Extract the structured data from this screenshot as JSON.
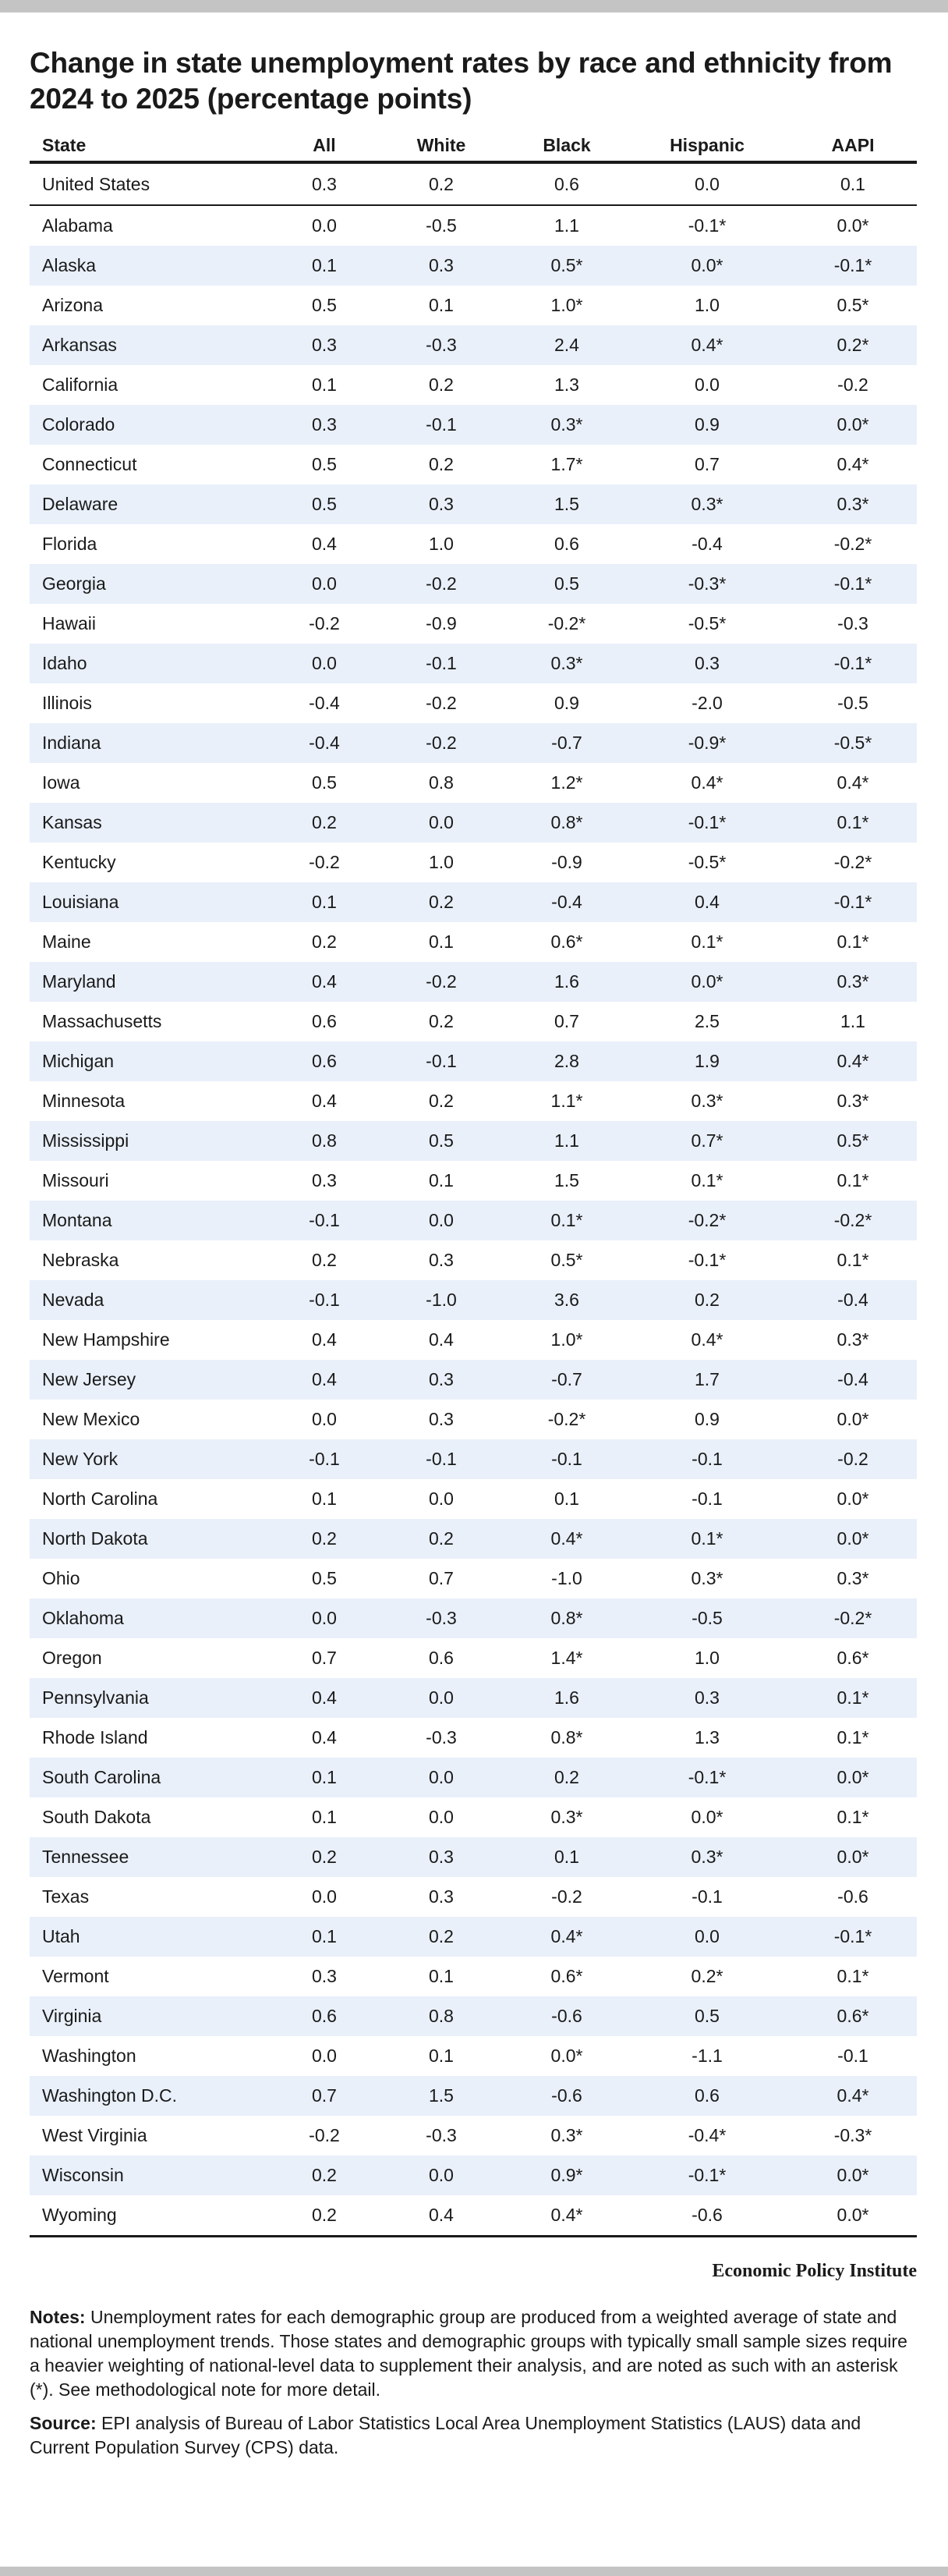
{
  "title": "Change in state unemployment rates by race and ethnicity from 2024 to 2025 (percentage points)",
  "columns": [
    "State",
    "All",
    "White",
    "Black",
    "Hispanic",
    "AAPI"
  ],
  "us_row": [
    "United States",
    "0.3",
    "0.2",
    "0.6",
    "0.0",
    "0.1"
  ],
  "rows": [
    [
      "Alabama",
      "0.0",
      "-0.5",
      "1.1",
      "-0.1*",
      "0.0*"
    ],
    [
      "Alaska",
      "0.1",
      "0.3",
      "0.5*",
      "0.0*",
      "-0.1*"
    ],
    [
      "Arizona",
      "0.5",
      "0.1",
      "1.0*",
      "1.0",
      "0.5*"
    ],
    [
      "Arkansas",
      "0.3",
      "-0.3",
      "2.4",
      "0.4*",
      "0.2*"
    ],
    [
      "California",
      "0.1",
      "0.2",
      "1.3",
      "0.0",
      "-0.2"
    ],
    [
      "Colorado",
      "0.3",
      "-0.1",
      "0.3*",
      "0.9",
      "0.0*"
    ],
    [
      "Connecticut",
      "0.5",
      "0.2",
      "1.7*",
      "0.7",
      "0.4*"
    ],
    [
      "Delaware",
      "0.5",
      "0.3",
      "1.5",
      "0.3*",
      "0.3*"
    ],
    [
      "Florida",
      "0.4",
      "1.0",
      "0.6",
      "-0.4",
      "-0.2*"
    ],
    [
      "Georgia",
      "0.0",
      "-0.2",
      "0.5",
      "-0.3*",
      "-0.1*"
    ],
    [
      "Hawaii",
      "-0.2",
      "-0.9",
      "-0.2*",
      "-0.5*",
      "-0.3"
    ],
    [
      "Idaho",
      "0.0",
      "-0.1",
      "0.3*",
      "0.3",
      "-0.1*"
    ],
    [
      "Illinois",
      "-0.4",
      "-0.2",
      "0.9",
      "-2.0",
      "-0.5"
    ],
    [
      "Indiana",
      "-0.4",
      "-0.2",
      "-0.7",
      "-0.9*",
      "-0.5*"
    ],
    [
      "Iowa",
      "0.5",
      "0.8",
      "1.2*",
      "0.4*",
      "0.4*"
    ],
    [
      "Kansas",
      "0.2",
      "0.0",
      "0.8*",
      "-0.1*",
      "0.1*"
    ],
    [
      "Kentucky",
      "-0.2",
      "1.0",
      "-0.9",
      "-0.5*",
      "-0.2*"
    ],
    [
      "Louisiana",
      "0.1",
      "0.2",
      "-0.4",
      "0.4",
      "-0.1*"
    ],
    [
      "Maine",
      "0.2",
      "0.1",
      "0.6*",
      "0.1*",
      "0.1*"
    ],
    [
      "Maryland",
      "0.4",
      "-0.2",
      "1.6",
      "0.0*",
      "0.3*"
    ],
    [
      "Massachusetts",
      "0.6",
      "0.2",
      "0.7",
      "2.5",
      "1.1"
    ],
    [
      "Michigan",
      "0.6",
      "-0.1",
      "2.8",
      "1.9",
      "0.4*"
    ],
    [
      "Minnesota",
      "0.4",
      "0.2",
      "1.1*",
      "0.3*",
      "0.3*"
    ],
    [
      "Mississippi",
      "0.8",
      "0.5",
      "1.1",
      "0.7*",
      "0.5*"
    ],
    [
      "Missouri",
      "0.3",
      "0.1",
      "1.5",
      "0.1*",
      "0.1*"
    ],
    [
      "Montana",
      "-0.1",
      "0.0",
      "0.1*",
      "-0.2*",
      "-0.2*"
    ],
    [
      "Nebraska",
      "0.2",
      "0.3",
      "0.5*",
      "-0.1*",
      "0.1*"
    ],
    [
      "Nevada",
      "-0.1",
      "-1.0",
      "3.6",
      "0.2",
      "-0.4"
    ],
    [
      "New Hampshire",
      "0.4",
      "0.4",
      "1.0*",
      "0.4*",
      "0.3*"
    ],
    [
      "New Jersey",
      "0.4",
      "0.3",
      "-0.7",
      "1.7",
      "-0.4"
    ],
    [
      "New Mexico",
      "0.0",
      "0.3",
      "-0.2*",
      "0.9",
      "0.0*"
    ],
    [
      "New York",
      "-0.1",
      "-0.1",
      "-0.1",
      "-0.1",
      "-0.2"
    ],
    [
      "North Carolina",
      "0.1",
      "0.0",
      "0.1",
      "-0.1",
      "0.0*"
    ],
    [
      "North Dakota",
      "0.2",
      "0.2",
      "0.4*",
      "0.1*",
      "0.0*"
    ],
    [
      "Ohio",
      "0.5",
      "0.7",
      "-1.0",
      "0.3*",
      "0.3*"
    ],
    [
      "Oklahoma",
      "0.0",
      "-0.3",
      "0.8*",
      "-0.5",
      "-0.2*"
    ],
    [
      "Oregon",
      "0.7",
      "0.6",
      "1.4*",
      "1.0",
      "0.6*"
    ],
    [
      "Pennsylvania",
      "0.4",
      "0.0",
      "1.6",
      "0.3",
      "0.1*"
    ],
    [
      "Rhode Island",
      "0.4",
      "-0.3",
      "0.8*",
      "1.3",
      "0.1*"
    ],
    [
      "South Carolina",
      "0.1",
      "0.0",
      "0.2",
      "-0.1*",
      "0.0*"
    ],
    [
      "South Dakota",
      "0.1",
      "0.0",
      "0.3*",
      "0.0*",
      "0.1*"
    ],
    [
      "Tennessee",
      "0.2",
      "0.3",
      "0.1",
      "0.3*",
      "0.0*"
    ],
    [
      "Texas",
      "0.0",
      "0.3",
      "-0.2",
      "-0.1",
      "-0.6"
    ],
    [
      "Utah",
      "0.1",
      "0.2",
      "0.4*",
      "0.0",
      "-0.1*"
    ],
    [
      "Vermont",
      "0.3",
      "0.1",
      "0.6*",
      "0.2*",
      "0.1*"
    ],
    [
      "Virginia",
      "0.6",
      "0.8",
      "-0.6",
      "0.5",
      "0.6*"
    ],
    [
      "Washington",
      "0.0",
      "0.1",
      "0.0*",
      "-1.1",
      "-0.1"
    ],
    [
      "Washington D.C.",
      "0.7",
      "1.5",
      "-0.6",
      "0.6",
      "0.4*"
    ],
    [
      "West Virginia",
      "-0.2",
      "-0.3",
      "0.3*",
      "-0.4*",
      "-0.3*"
    ],
    [
      "Wisconsin",
      "0.2",
      "0.0",
      "0.9*",
      "-0.1*",
      "0.0*"
    ],
    [
      "Wyoming",
      "0.2",
      "0.4",
      "0.4*",
      "-0.6",
      "0.0*"
    ]
  ],
  "brand": "Economic Policy Institute",
  "notes": {
    "label": "Notes:",
    "text": " Unemployment rates for each demographic group are produced from a weighted average of state and national unemployment trends. Those states and demographic groups with typically small sample sizes require a heavier weighting of national-level data to supplement their analysis, and are noted as such with an asterisk (*). See methodological note for more detail."
  },
  "source": {
    "label": "Source:",
    "text": " EPI analysis of Bureau of Labor Statistics Local Area Unemployment Statistics (LAUS) data and Current Population Survey (CPS) data."
  },
  "colors": {
    "row_shade": "#e9f0fa",
    "rule": "#1a1a1a",
    "frame_bar": "#c4c4c4"
  }
}
